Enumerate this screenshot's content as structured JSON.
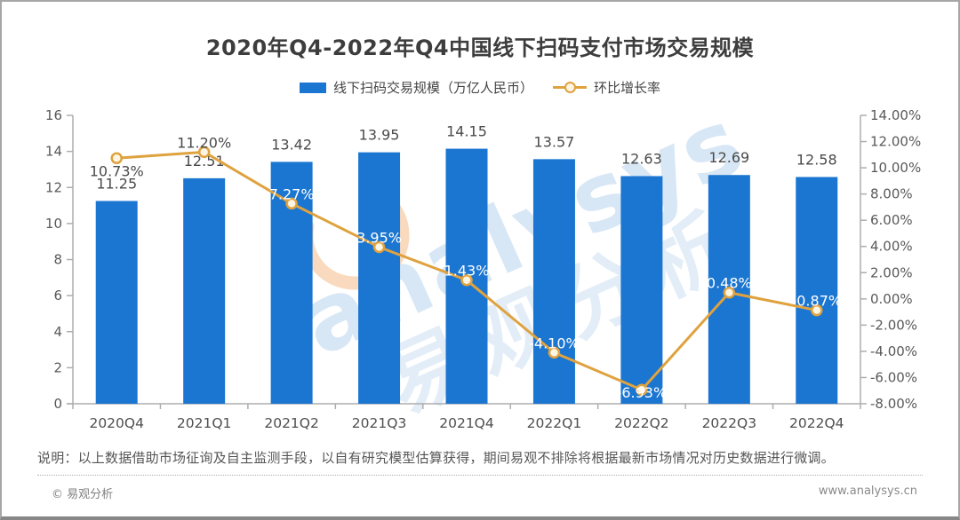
{
  "chart_data": {
    "type": "bar",
    "combo": "bar+line",
    "title": "2020年Q4-2022年Q4中国线下扫码支付市场交易规模",
    "categories": [
      "2020Q4",
      "2021Q1",
      "2021Q2",
      "2021Q3",
      "2021Q4",
      "2022Q1",
      "2022Q2",
      "2022Q3",
      "2022Q4"
    ],
    "series": [
      {
        "name": "线下扫码交易规模（万亿人民币）",
        "type": "bar",
        "axis": "left",
        "color": "#1b76d1",
        "values": [
          11.25,
          12.51,
          13.42,
          13.95,
          14.15,
          13.57,
          12.63,
          12.69,
          12.58
        ],
        "labels": [
          "11.25",
          "12.51",
          "13.42",
          "13.95",
          "14.15",
          "13.57",
          "12.63",
          "12.69",
          "12.58"
        ]
      },
      {
        "name": "环比增长率",
        "type": "line",
        "axis": "right",
        "color": "#dfa23f",
        "marker_fill": "#fdf5e3",
        "values": [
          10.73,
          11.2,
          7.27,
          3.95,
          1.43,
          -4.1,
          -6.93,
          0.48,
          -0.87
        ],
        "labels": [
          "10.73%",
          "11.20%",
          "7.27%",
          "3.95%",
          "1.43%",
          "-4.10%",
          "-6.93%",
          "0.48%",
          "-0.87%"
        ]
      }
    ],
    "left_axis": {
      "min": 0,
      "max": 16,
      "step": 2,
      "tick_labels": [
        "0",
        "2",
        "4",
        "6",
        "8",
        "10",
        "12",
        "14",
        "16"
      ]
    },
    "right_axis": {
      "min": -8,
      "max": 14,
      "step": 2,
      "tick_labels": [
        "-8.00%",
        "-6.00%",
        "-4.00%",
        "-2.00%",
        "0.00%",
        "2.00%",
        "4.00%",
        "6.00%",
        "8.00%",
        "10.00%",
        "12.00%",
        "14.00%"
      ]
    },
    "grid": false,
    "legend_position": "top",
    "label_text_dark": "#4a4a4a",
    "label_text_on_bar": "#ffffff",
    "axis_text_color": "#595959",
    "axis_line_color": "#adadad"
  },
  "watermark": {
    "text_en": "analysys",
    "text_cn": "易观分析"
  },
  "note": "说明：以上数据借助市场征询及自主监测手段，以自有研究模型估算获得，期间易观不排除将根据最新市场情况对历史数据进行微调。",
  "footer": {
    "left": "© 易观分析",
    "right": "www.analysys.cn"
  }
}
